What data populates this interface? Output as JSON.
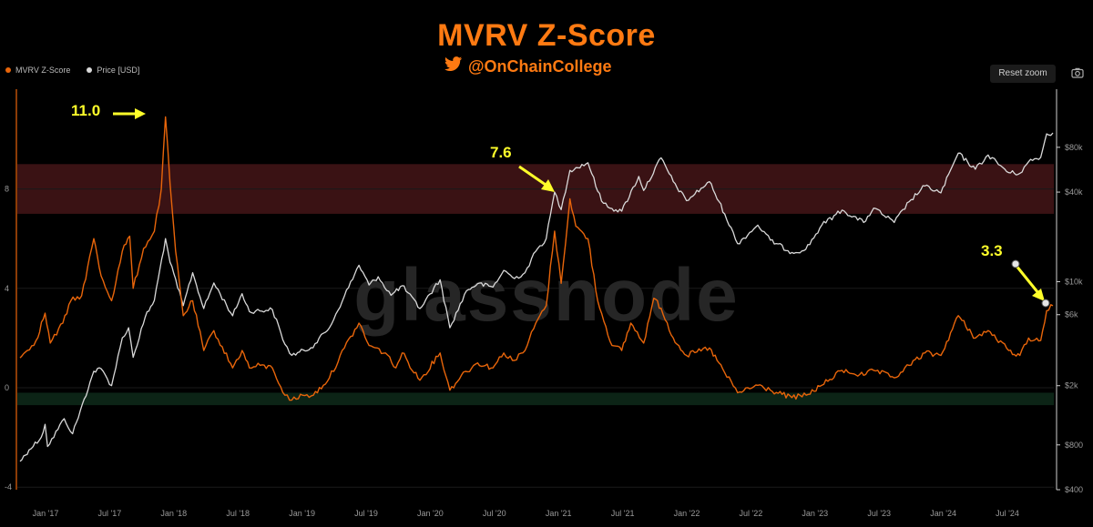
{
  "header": {
    "title": "MVRV Z-Score",
    "handle": "@OnChainCollege"
  },
  "legend": {
    "items": [
      {
        "label": "MVRV Z-Score",
        "color": "#e8650a"
      },
      {
        "label": "Price [USD]",
        "color": "#d9d9d9"
      }
    ]
  },
  "toolbar": {
    "reset_label": "Reset zoom",
    "camera_icon": "camera-icon"
  },
  "watermark": "glassnode",
  "annotations": {
    "peak_2017": "11.0",
    "peak_2021": "7.6",
    "current": "3.3"
  },
  "colors": {
    "accent": "#ff7a12",
    "zscore": "#e8650a",
    "price": "#d9d9d9",
    "red_band": "#3a1214",
    "green_band": "#0c2416",
    "annotation": "#ffff2a"
  },
  "chart_data": {
    "type": "line",
    "title": "MVRV Z-Score",
    "x_ticks": [
      "Jan '17",
      "Jul '17",
      "Jan '18",
      "Jul '18",
      "Jan '19",
      "Jul '19",
      "Jan '20",
      "Jul '20",
      "Jan '21",
      "Jul '21",
      "Jan '22",
      "Jul '22",
      "Jan '23",
      "Jul '23",
      "Jan '24",
      "Jul '24"
    ],
    "y_left": {
      "ticks": [
        "-4",
        "0",
        "4",
        "8"
      ],
      "range": [
        -4,
        11.5
      ]
    },
    "y_right": {
      "ticks": [
        "$400",
        "$800",
        "$2k",
        "$6k",
        "$10k",
        "$40k",
        "$80k"
      ],
      "scale": "log"
    },
    "bands": [
      {
        "name": "red",
        "from": 7,
        "to": 9
      },
      {
        "name": "green",
        "from": -0.7,
        "to": -0.2
      }
    ],
    "series": [
      {
        "name": "MVRV Z-Score",
        "axis": "left",
        "points": [
          [
            "2016-10-25",
            1.2
          ],
          [
            "2016-11-15",
            1.5
          ],
          [
            "2016-12-10",
            1.9
          ],
          [
            "2017-01-05",
            3.0
          ],
          [
            "2017-01-20",
            1.8
          ],
          [
            "2017-02-25",
            2.6
          ],
          [
            "2017-03-20",
            3.5
          ],
          [
            "2017-04-20",
            3.7
          ],
          [
            "2017-05-25",
            6.0
          ],
          [
            "2017-06-15",
            4.5
          ],
          [
            "2017-07-15",
            3.5
          ],
          [
            "2017-08-15",
            5.5
          ],
          [
            "2017-09-05",
            6.1
          ],
          [
            "2017-09-15",
            4.0
          ],
          [
            "2017-10-15",
            5.6
          ],
          [
            "2017-11-15",
            6.3
          ],
          [
            "2017-12-05",
            8.0
          ],
          [
            "2017-12-17",
            10.9
          ],
          [
            "2017-12-30",
            8.2
          ],
          [
            "2018-01-15",
            5.5
          ],
          [
            "2018-02-06",
            2.9
          ],
          [
            "2018-03-05",
            3.5
          ],
          [
            "2018-04-06",
            1.5
          ],
          [
            "2018-05-05",
            2.3
          ],
          [
            "2018-06-28",
            0.8
          ],
          [
            "2018-07-25",
            1.5
          ],
          [
            "2018-08-15",
            0.8
          ],
          [
            "2018-09-15",
            0.9
          ],
          [
            "2018-10-20",
            0.8
          ],
          [
            "2018-11-25",
            -0.3
          ],
          [
            "2018-12-15",
            -0.5
          ],
          [
            "2019-01-15",
            -0.3
          ],
          [
            "2019-02-15",
            -0.3
          ],
          [
            "2019-04-02",
            0.4
          ],
          [
            "2019-05-15",
            1.6
          ],
          [
            "2019-06-26",
            2.6
          ],
          [
            "2019-07-25",
            1.7
          ],
          [
            "2019-09-10",
            1.4
          ],
          [
            "2019-10-10",
            0.8
          ],
          [
            "2019-10-28",
            1.4
          ],
          [
            "2019-12-18",
            0.3
          ],
          [
            "2020-02-14",
            1.4
          ],
          [
            "2020-03-13",
            -0.1
          ],
          [
            "2020-04-15",
            0.5
          ],
          [
            "2020-06-01",
            1.0
          ],
          [
            "2020-07-15",
            0.8
          ],
          [
            "2020-08-15",
            1.4
          ],
          [
            "2020-09-15",
            1.1
          ],
          [
            "2020-10-15",
            1.5
          ],
          [
            "2020-11-15",
            2.6
          ],
          [
            "2020-12-15",
            3.3
          ],
          [
            "2021-01-08",
            6.3
          ],
          [
            "2021-01-27",
            4.2
          ],
          [
            "2021-02-21",
            7.6
          ],
          [
            "2021-03-10",
            6.5
          ],
          [
            "2021-04-14",
            6.0
          ],
          [
            "2021-05-12",
            3.5
          ],
          [
            "2021-06-22",
            1.7
          ],
          [
            "2021-07-20",
            1.5
          ],
          [
            "2021-08-15",
            2.6
          ],
          [
            "2021-09-21",
            1.8
          ],
          [
            "2021-10-20",
            3.6
          ],
          [
            "2021-11-10",
            3.2
          ],
          [
            "2021-12-15",
            2.0
          ],
          [
            "2022-01-22",
            1.3
          ],
          [
            "2022-03-29",
            1.6
          ],
          [
            "2022-05-12",
            0.6
          ],
          [
            "2022-06-18",
            -0.2
          ],
          [
            "2022-08-15",
            0.1
          ],
          [
            "2022-09-20",
            -0.1
          ],
          [
            "2022-11-21",
            -0.4
          ],
          [
            "2023-01-01",
            -0.3
          ],
          [
            "2023-02-15",
            0.1
          ],
          [
            "2023-04-14",
            0.7
          ],
          [
            "2023-06-15",
            0.5
          ],
          [
            "2023-07-14",
            0.7
          ],
          [
            "2023-09-11",
            0.4
          ],
          [
            "2023-10-24",
            0.9
          ],
          [
            "2023-12-08",
            1.4
          ],
          [
            "2024-01-23",
            1.3
          ],
          [
            "2024-03-13",
            2.9
          ],
          [
            "2024-05-01",
            2.0
          ],
          [
            "2024-06-07",
            2.3
          ],
          [
            "2024-08-05",
            1.5
          ],
          [
            "2024-09-06",
            1.3
          ],
          [
            "2024-10-01",
            2.0
          ],
          [
            "2024-11-05",
            1.9
          ],
          [
            "2024-11-22",
            3.1
          ],
          [
            "2024-12-10",
            3.3
          ]
        ]
      },
      {
        "name": "Price [USD]",
        "axis": "right",
        "points": [
          [
            "2016-10-25",
            620
          ],
          [
            "2016-11-20",
            740
          ],
          [
            "2016-12-25",
            900
          ],
          [
            "2017-01-05",
            1100
          ],
          [
            "2017-01-12",
            780
          ],
          [
            "2017-03-01",
            1200
          ],
          [
            "2017-03-25",
            950
          ],
          [
            "2017-05-25",
            2500
          ],
          [
            "2017-06-15",
            2600
          ],
          [
            "2017-07-15",
            2000
          ],
          [
            "2017-08-15",
            4200
          ],
          [
            "2017-09-02",
            4900
          ],
          [
            "2017-09-15",
            3100
          ],
          [
            "2017-10-20",
            5800
          ],
          [
            "2017-11-15",
            7500
          ],
          [
            "2017-12-17",
            19500
          ],
          [
            "2017-12-30",
            13500
          ],
          [
            "2018-02-06",
            6900
          ],
          [
            "2018-03-05",
            11500
          ],
          [
            "2018-04-06",
            6600
          ],
          [
            "2018-05-05",
            9800
          ],
          [
            "2018-06-28",
            5900
          ],
          [
            "2018-07-25",
            8300
          ],
          [
            "2018-08-15",
            6300
          ],
          [
            "2018-10-20",
            6500
          ],
          [
            "2018-11-25",
            3800
          ],
          [
            "2018-12-15",
            3200
          ],
          [
            "2019-02-08",
            3600
          ],
          [
            "2019-04-02",
            4900
          ],
          [
            "2019-05-15",
            8000
          ],
          [
            "2019-06-26",
            12900
          ],
          [
            "2019-07-25",
            9500
          ],
          [
            "2019-08-20",
            10800
          ],
          [
            "2019-09-26",
            8100
          ],
          [
            "2019-10-28",
            9400
          ],
          [
            "2019-12-18",
            6600
          ],
          [
            "2020-02-14",
            10300
          ],
          [
            "2020-03-13",
            4900
          ],
          [
            "2020-04-30",
            8700
          ],
          [
            "2020-06-01",
            9700
          ],
          [
            "2020-07-15",
            9200
          ],
          [
            "2020-08-15",
            11900
          ],
          [
            "2020-09-15",
            10500
          ],
          [
            "2020-10-15",
            11500
          ],
          [
            "2020-11-15",
            16000
          ],
          [
            "2020-12-15",
            19500
          ],
          [
            "2021-01-08",
            40000
          ],
          [
            "2021-01-27",
            30500
          ],
          [
            "2021-02-21",
            56000
          ],
          [
            "2021-04-14",
            63000
          ],
          [
            "2021-05-23",
            34800
          ],
          [
            "2021-06-22",
            31000
          ],
          [
            "2021-07-20",
            29800
          ],
          [
            "2021-09-07",
            51000
          ],
          [
            "2021-09-21",
            41000
          ],
          [
            "2021-11-10",
            68000
          ],
          [
            "2021-12-15",
            47000
          ],
          [
            "2022-01-22",
            35000
          ],
          [
            "2022-03-29",
            47000
          ],
          [
            "2022-05-12",
            28500
          ],
          [
            "2022-06-18",
            18000
          ],
          [
            "2022-08-15",
            24000
          ],
          [
            "2022-09-20",
            19000
          ],
          [
            "2022-11-21",
            15700
          ],
          [
            "2022-12-31",
            16500
          ],
          [
            "2023-02-15",
            24000
          ],
          [
            "2023-04-14",
            30300
          ],
          [
            "2023-06-15",
            25000
          ],
          [
            "2023-07-14",
            31200
          ],
          [
            "2023-09-11",
            25000
          ],
          [
            "2023-10-24",
            34500
          ],
          [
            "2023-12-08",
            44000
          ],
          [
            "2024-01-23",
            39500
          ],
          [
            "2024-03-13",
            73000
          ],
          [
            "2024-05-01",
            57000
          ],
          [
            "2024-06-07",
            71000
          ],
          [
            "2024-08-05",
            54000
          ],
          [
            "2024-09-06",
            53500
          ],
          [
            "2024-10-01",
            64000
          ],
          [
            "2024-11-05",
            68500
          ],
          [
            "2024-11-22",
            98500
          ],
          [
            "2024-12-10",
            100000
          ]
        ]
      }
    ]
  }
}
